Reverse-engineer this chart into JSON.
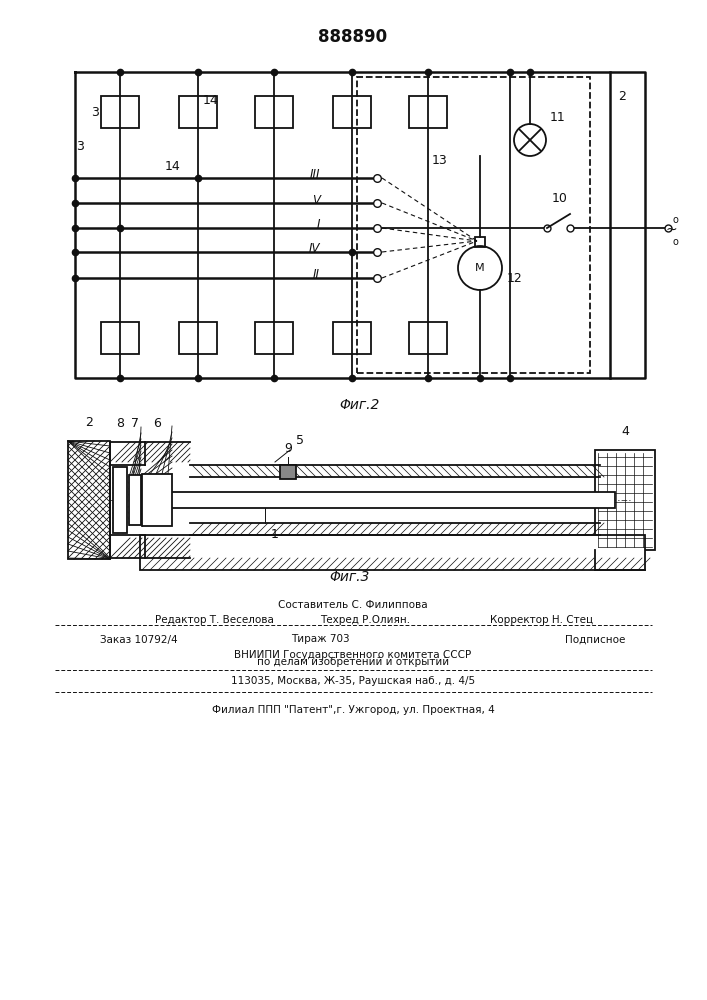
{
  "title": "888890",
  "bg_color": "#ffffff",
  "fig2_label": "Φиг.2",
  "fig3_label": "Φиг.3",
  "footer_line0": "Составитель С. Филиппова",
  "footer_line1a": "Редактор Т. Веселова",
  "footer_line1b": "Техред Р.Олиян.",
  "footer_line1c": "Корректор Н. Стец",
  "footer_line2a": "Заказ 10792/4",
  "footer_line2b": "Тираж 703",
  "footer_line2c": "Подписное",
  "footer_line3": "ВНИИПИ Государственного комитета СССР",
  "footer_line4": "по делам изобретений и открытий",
  "footer_line5": "113035, Москва, Ж-35, Раушская наб., д. 4/5",
  "footer_line6": "Филиал ППП \"Патент\",г. Ужгород, ул. Проектная, 4"
}
